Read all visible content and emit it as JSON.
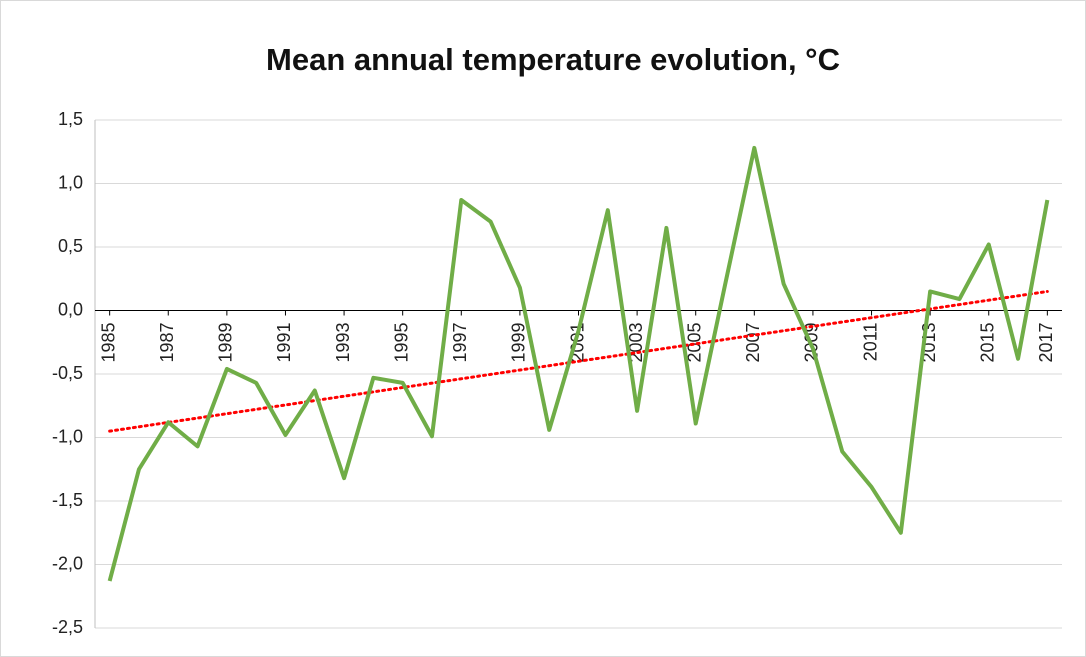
{
  "chart_data": {
    "type": "line",
    "title": "Mean annual temperature evolution, °C",
    "x": [
      1985,
      1986,
      1987,
      1988,
      1989,
      1990,
      1991,
      1992,
      1993,
      1994,
      1995,
      1996,
      1997,
      1998,
      1999,
      2000,
      2001,
      2002,
      2003,
      2004,
      2005,
      2006,
      2007,
      2008,
      2009,
      2010,
      2011,
      2012,
      2013,
      2014,
      2015,
      2016,
      2017
    ],
    "values": [
      -2.13,
      -1.25,
      -0.88,
      -1.07,
      -0.46,
      -0.57,
      -0.98,
      -0.63,
      -1.32,
      -0.53,
      -0.57,
      -0.99,
      0.87,
      0.7,
      0.18,
      -0.94,
      -0.16,
      0.79,
      -0.79,
      0.65,
      -0.89,
      0.2,
      1.28,
      0.21,
      -0.3,
      -1.11,
      -1.39,
      -1.75,
      0.15,
      0.09,
      0.52,
      -0.38,
      0.87
    ],
    "color": "#70ad47",
    "trendline": {
      "x": [
        1985,
        2017
      ],
      "values": [
        -0.95,
        0.15
      ],
      "color": "#ff0000"
    },
    "xlim": [
      1984.5,
      2017.5
    ],
    "xticks": [
      1985,
      1987,
      1989,
      1991,
      1993,
      1995,
      1997,
      1999,
      2001,
      2003,
      2005,
      2007,
      2009,
      2011,
      2013,
      2015,
      2017
    ],
    "ylim": [
      -2.5,
      1.5
    ],
    "yticks": [
      {
        "value": -2.5,
        "label": "-2,5"
      },
      {
        "value": -2,
        "label": "-2,0"
      },
      {
        "value": -1.5,
        "label": "-1,5"
      },
      {
        "value": -1,
        "label": "-1,0"
      },
      {
        "value": -0.5,
        "label": "-0,5"
      },
      {
        "value": 0,
        "label": "0,0"
      },
      {
        "value": 0.5,
        "label": "0,5"
      },
      {
        "value": 1,
        "label": "1,0"
      },
      {
        "value": 1.5,
        "label": "1,5"
      }
    ],
    "grid": true
  }
}
